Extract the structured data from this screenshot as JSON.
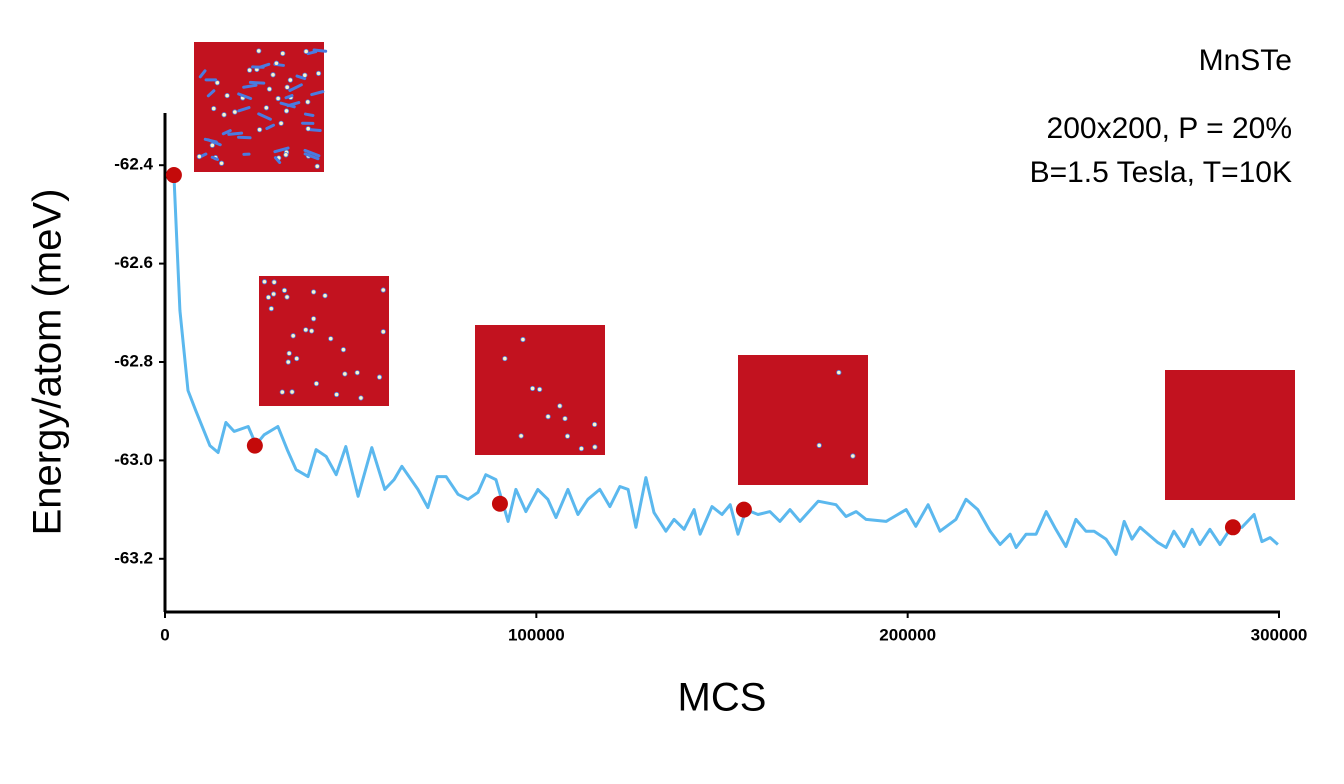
{
  "chart_data": {
    "type": "line",
    "annotations": [
      "MnSTe",
      "200x200, P = 20%",
      "B=1.5 Tesla, T=10K"
    ],
    "xlabel": "MCS",
    "ylabel": "Energy/atom (meV)",
    "xlim": [
      0,
      300000
    ],
    "ylim": [
      -63.3,
      -62.3
    ],
    "xticks": [
      0,
      100000,
      200000,
      300000
    ],
    "yticks": [
      -62.4,
      -62.6,
      -62.8,
      {
        "value": -63,
        "label": "-63.0"
      },
      -63.2
    ],
    "line": {
      "color": "#5bb8ee",
      "x": [
        2400,
        4000,
        6200,
        8300,
        12100,
        14300,
        16400,
        18600,
        22400,
        24500,
        26700,
        30400,
        32900,
        35300,
        38500,
        40700,
        43400,
        46100,
        48700,
        52000,
        55700,
        59200,
        61700,
        63800,
        68100,
        70800,
        73300,
        75700,
        78900,
        81600,
        84300,
        86400,
        89100,
        92400,
        94500,
        97200,
        100400,
        103100,
        105300,
        108500,
        111200,
        113900,
        117100,
        119800,
        122500,
        124700,
        126800,
        129500,
        131700,
        134900,
        137100,
        139800,
        142500,
        144100,
        147300,
        150000,
        152200,
        154300,
        156500,
        159700,
        162900,
        165600,
        168300,
        171000,
        175900,
        180700,
        183400,
        186100,
        188800,
        194200,
        199600,
        202200,
        205500,
        208700,
        213000,
        215700,
        218900,
        222200,
        224900,
        227600,
        229200,
        231900,
        234600,
        237300,
        239900,
        242600,
        245300,
        248000,
        250200,
        253400,
        256100,
        258300,
        260400,
        262600,
        267400,
        269600,
        271700,
        274400,
        276600,
        278700,
        281400,
        284100,
        286800,
        290000,
        293300,
        295400,
        297600,
        299700
      ],
      "values": [
        -62.42,
        -62.695,
        -62.858,
        -62.899,
        -62.97,
        -62.984,
        -62.923,
        -62.941,
        -62.931,
        -62.968,
        -62.948,
        -62.931,
        -62.978,
        -63.019,
        -63.033,
        -62.978,
        -62.992,
        -63.029,
        -62.972,
        -63.073,
        -62.974,
        -63.059,
        -63.039,
        -63.012,
        -63.059,
        -63.096,
        -63.033,
        -63.033,
        -63.069,
        -63.079,
        -63.065,
        -63.029,
        -63.039,
        -63.124,
        -63.059,
        -63.104,
        -63.059,
        -63.079,
        -63.116,
        -63.059,
        -63.11,
        -63.079,
        -63.059,
        -63.094,
        -63.053,
        -63.059,
        -63.136,
        -63.035,
        -63.106,
        -63.144,
        -63.12,
        -63.14,
        -63.1,
        -63.15,
        -63.094,
        -63.11,
        -63.09,
        -63.15,
        -63.1,
        -63.11,
        -63.104,
        -63.124,
        -63.1,
        -63.124,
        -63.083,
        -63.09,
        -63.114,
        -63.104,
        -63.12,
        -63.124,
        -63.1,
        -63.134,
        -63.09,
        -63.144,
        -63.12,
        -63.079,
        -63.1,
        -63.144,
        -63.171,
        -63.15,
        -63.177,
        -63.15,
        -63.15,
        -63.104,
        -63.14,
        -63.175,
        -63.12,
        -63.144,
        -63.144,
        -63.16,
        -63.191,
        -63.124,
        -63.16,
        -63.136,
        -63.167,
        -63.177,
        -63.144,
        -63.175,
        -63.14,
        -63.171,
        -63.14,
        -63.171,
        -63.14,
        -63.136,
        -63.11,
        -63.165,
        -63.157,
        -63.171
      ]
    },
    "markers": {
      "color": "#c40a0a",
      "x": [
        2400,
        24200,
        90200,
        155900,
        287600
      ],
      "values": [
        -62.42,
        -62.97,
        -63.088,
        -63.1,
        -63.136
      ]
    }
  }
}
